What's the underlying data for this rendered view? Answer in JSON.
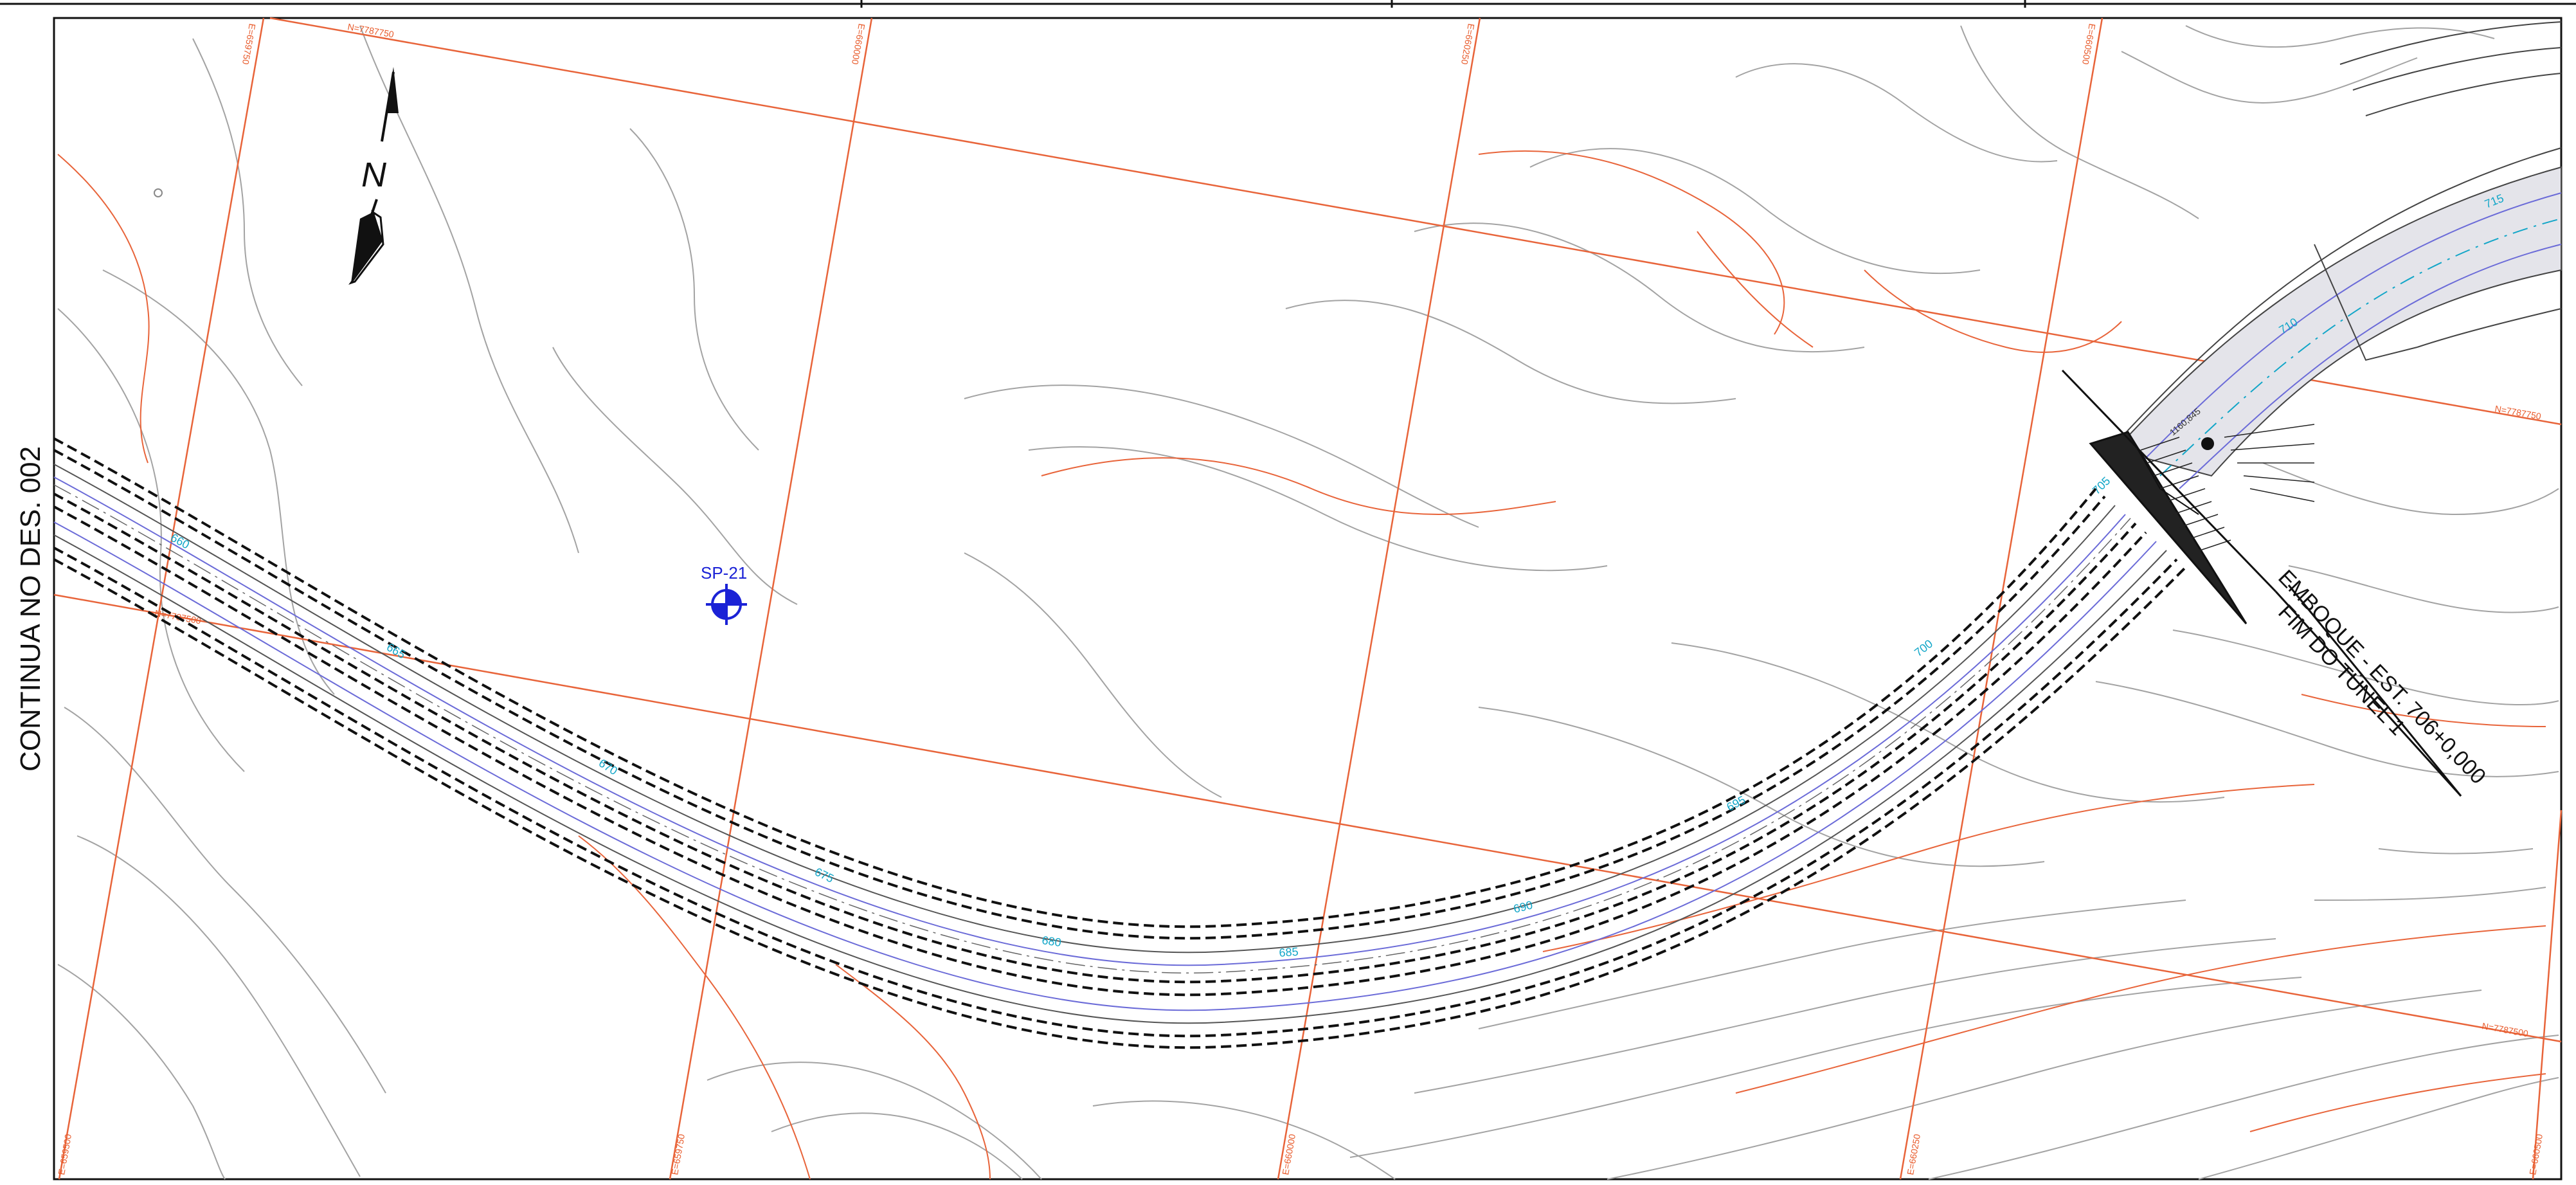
{
  "sheet": {
    "side_note": "CONTINUA NO DES. 002"
  },
  "north_arrow": {
    "label": "N"
  },
  "grid_labels": {
    "n_7787750": "N=7787750",
    "n_7787750_right": "N=7787750",
    "n_7787500": "N=7787500",
    "n_7787500_left": "N=7787500",
    "e_top_1": "E=659750",
    "e_top_2": "E=660000",
    "e_top_3": "E=660250",
    "e_top_4": "E=660500",
    "e_bot_1": "E=659500",
    "e_bot_2": "E=659750",
    "e_bot_3": "E=660000",
    "e_bot_4": "E=660250",
    "e_bot_5": "E=660500"
  },
  "stations": [
    "660",
    "665",
    "670",
    "675",
    "680",
    "685",
    "690",
    "695",
    "700",
    "705",
    "710",
    "715"
  ],
  "probe": {
    "id": "SP-21"
  },
  "tunnel": {
    "line1": "EMBOQUE - EST. 706+0,000",
    "line2": "FIM DO TÚNEL 1",
    "elevation": "1160,845"
  },
  "colors": {
    "grid": "#e8643a",
    "contour_major": "#e8643a",
    "contour_minor": "#9a9a9a",
    "road_edge": "#111111",
    "road_inner": "#6b6bd8",
    "station": "#12a6c8",
    "probe": "#1b22d6",
    "tunnel_fill": "#e6e6ea"
  }
}
